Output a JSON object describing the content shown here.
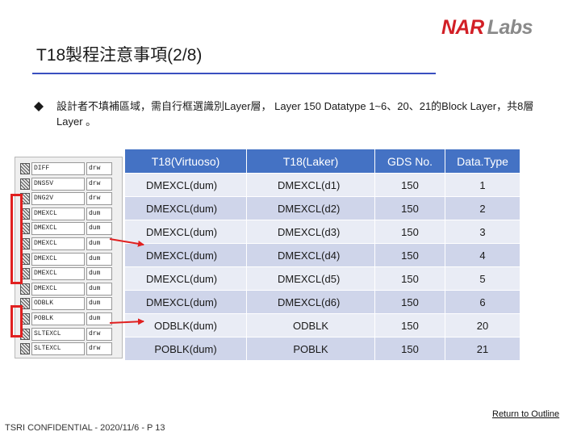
{
  "slide": {
    "title": "T18製程注意事項(2/8)",
    "logo_nar": "NAR",
    "logo_labs": "Labs",
    "description": "設計者不填補區域，需自行框選識別Layer層， Layer 150 Datatype 1~6、20、21的Block Layer，共8層Layer 。",
    "footer": "TSRI CONFIDENTIAL - 2020/11/6 - P 13",
    "return_link": "Return to Outline",
    "accent_color": "#3a4fc0",
    "table_header_color": "#4472c4",
    "highlight_color": "#e02020"
  },
  "layer_panel": {
    "rows": [
      {
        "name": "DIFF",
        "type": "drw"
      },
      {
        "name": "DNS5V",
        "type": "drw"
      },
      {
        "name": "DNG2V",
        "type": "drw"
      },
      {
        "name": "DMEXCL",
        "type": "dum"
      },
      {
        "name": "DMEXCL",
        "type": "dum"
      },
      {
        "name": "DMEXCL",
        "type": "dum"
      },
      {
        "name": "DMEXCL",
        "type": "dum"
      },
      {
        "name": "DMEXCL",
        "type": "dum"
      },
      {
        "name": "DMEXCL",
        "type": "dum"
      },
      {
        "name": "ODBLK",
        "type": "dum"
      },
      {
        "name": "POBLK",
        "type": "dum"
      },
      {
        "name": "SLTEXCL",
        "type": "drw"
      },
      {
        "name": "SLTEXCL",
        "type": "drw"
      }
    ]
  },
  "table": {
    "headers": [
      "T18(Virtuoso)",
      "T18(Laker)",
      "GDS No.",
      "Data.Type"
    ],
    "rows": [
      [
        "DMEXCL(dum)",
        "DMEXCL(d1)",
        "150",
        "1"
      ],
      [
        "DMEXCL(dum)",
        "DMEXCL(d2)",
        "150",
        "2"
      ],
      [
        "DMEXCL(dum)",
        "DMEXCL(d3)",
        "150",
        "3"
      ],
      [
        "DMEXCL(dum)",
        "DMEXCL(d4)",
        "150",
        "4"
      ],
      [
        "DMEXCL(dum)",
        "DMEXCL(d5)",
        "150",
        "5"
      ],
      [
        "DMEXCL(dum)",
        "DMEXCL(d6)",
        "150",
        "6"
      ],
      [
        "ODBLK(dum)",
        "ODBLK",
        "150",
        "20"
      ],
      [
        "POBLK(dum)",
        "POBLK",
        "150",
        "21"
      ]
    ]
  }
}
